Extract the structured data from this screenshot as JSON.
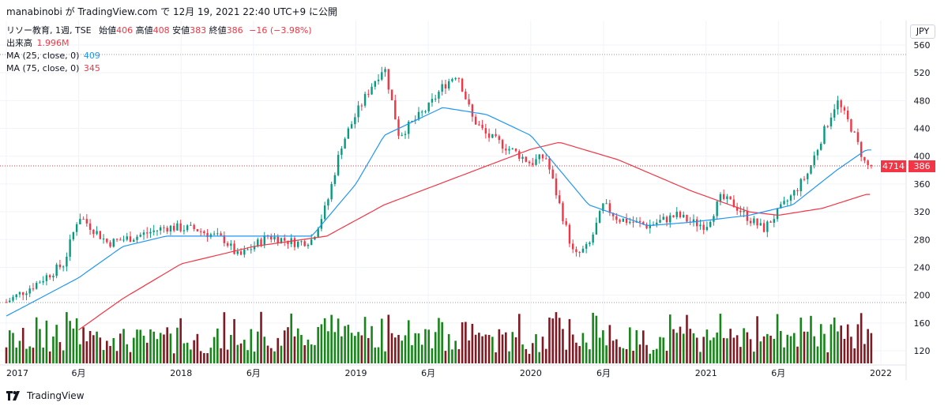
{
  "header": {
    "title": "manabinobi が TradingView.com で 12月 19, 2021 22:40 UTC+9 に公開"
  },
  "legend": {
    "symbol": "リソー教育, 1週, TSE",
    "open_label": "始値",
    "open": "406",
    "high_label": "高値",
    "high": "408",
    "low_label": "安値",
    "low": "383",
    "close_label": "終値",
    "close": "386",
    "change": "−16 (−3.98%)",
    "volume_label": "出来高",
    "volume": "1.996M",
    "ma25_label": "MA (25, close, 0)",
    "ma25_value": "409",
    "ma75_label": "MA (75, close, 0)",
    "ma75_value": "345"
  },
  "currency": "JPY",
  "price_tags": {
    "left": "4714",
    "right": "386"
  },
  "footer": {
    "brand": "TradingView"
  },
  "colors": {
    "up": "#089981",
    "down": "#f23645",
    "ma25": "#2196f3",
    "ma75": "#f23645",
    "vol_up": "#17861a",
    "vol_down": "#801922"
  },
  "chart_data": {
    "type": "candlestick",
    "title": "リソー教育, 1週, TSE",
    "y_axis": {
      "ticks": [
        560,
        520,
        480,
        440,
        400,
        360,
        320,
        280,
        240,
        200,
        160,
        120
      ],
      "range": [
        100,
        560
      ]
    },
    "x_axis": {
      "ticks": [
        "2017",
        "6月",
        "2018",
        "6月",
        "2019",
        "6月",
        "2020",
        "6月",
        "2021",
        "6月",
        "2022"
      ]
    },
    "last": {
      "open": 406,
      "high": 408,
      "low": 383,
      "close": 386,
      "change": -16,
      "change_pct": -3.98
    },
    "price_anchors": [
      [
        "2017-01",
        190
      ],
      [
        "2017-03",
        215
      ],
      [
        "2017-05",
        245
      ],
      [
        "2017-06",
        315
      ],
      [
        "2017-08",
        275
      ],
      [
        "2017-10",
        285
      ],
      [
        "2017-12",
        298
      ],
      [
        "2018-02",
        295
      ],
      [
        "2018-04",
        280
      ],
      [
        "2018-05",
        255
      ],
      [
        "2018-07",
        285
      ],
      [
        "2018-09",
        275
      ],
      [
        "2018-10",
        280
      ],
      [
        "2018-11",
        330
      ],
      [
        "2018-12",
        415
      ],
      [
        "2019-01",
        460
      ],
      [
        "2019-02",
        500
      ],
      [
        "2019-03",
        530
      ],
      [
        "2019-04",
        430
      ],
      [
        "2019-05",
        450
      ],
      [
        "2019-06",
        470
      ],
      [
        "2019-07",
        500
      ],
      [
        "2019-08",
        520
      ],
      [
        "2019-09",
        455
      ],
      [
        "2019-10",
        430
      ],
      [
        "2019-12",
        405
      ],
      [
        "2020-01",
        390
      ],
      [
        "2020-02",
        400
      ],
      [
        "2020-03",
        330
      ],
      [
        "2020-04",
        255
      ],
      [
        "2020-05",
        270
      ],
      [
        "2020-06",
        330
      ],
      [
        "2020-07",
        310
      ],
      [
        "2020-09",
        300
      ],
      [
        "2020-11",
        315
      ],
      [
        "2020-12",
        305
      ],
      [
        "2021-01",
        300
      ],
      [
        "2021-02",
        340
      ],
      [
        "2021-03",
        330
      ],
      [
        "2021-04",
        310
      ],
      [
        "2021-05",
        295
      ],
      [
        "2021-06",
        320
      ],
      [
        "2021-07",
        345
      ],
      [
        "2021-08",
        375
      ],
      [
        "2021-09",
        430
      ],
      [
        "2021-10",
        480
      ],
      [
        "2021-11",
        440
      ],
      [
        "2021-12",
        386
      ]
    ],
    "ma25_anchors": [
      [
        "2017-01",
        170
      ],
      [
        "2017-06",
        225
      ],
      [
        "2017-09",
        270
      ],
      [
        "2017-12",
        285
      ],
      [
        "2018-06",
        285
      ],
      [
        "2018-10",
        285
      ],
      [
        "2019-01",
        360
      ],
      [
        "2019-03",
        430
      ],
      [
        "2019-07",
        470
      ],
      [
        "2019-10",
        460
      ],
      [
        "2020-01",
        430
      ],
      [
        "2020-05",
        330
      ],
      [
        "2020-09",
        300
      ],
      [
        "2020-12",
        305
      ],
      [
        "2021-04",
        315
      ],
      [
        "2021-07",
        330
      ],
      [
        "2021-10",
        380
      ],
      [
        "2021-12",
        409
      ]
    ],
    "ma75_anchors": [
      [
        "2017-06",
        150
      ],
      [
        "2017-09",
        195
      ],
      [
        "2018-01",
        245
      ],
      [
        "2018-06",
        270
      ],
      [
        "2018-11",
        285
      ],
      [
        "2019-03",
        330
      ],
      [
        "2019-08",
        370
      ],
      [
        "2020-01",
        410
      ],
      [
        "2020-03",
        420
      ],
      [
        "2020-07",
        395
      ],
      [
        "2020-12",
        350
      ],
      [
        "2021-04",
        320
      ],
      [
        "2021-06",
        315
      ],
      [
        "2021-09",
        325
      ],
      [
        "2021-12",
        345
      ]
    ],
    "volume_note": "Volume histogram shown in lower panel, last bar 1.996M"
  }
}
